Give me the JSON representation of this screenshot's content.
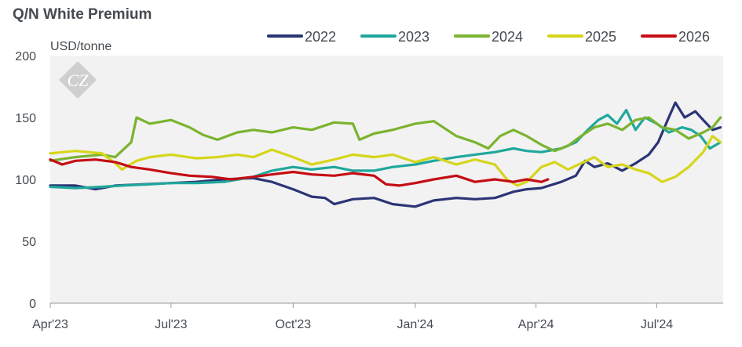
{
  "chart_data": {
    "type": "line",
    "title": "Q/N White Premium",
    "ylabel": "USD/tonne",
    "ylim": [
      0,
      200
    ],
    "yticks": [
      "0",
      "50",
      "100",
      "150",
      "200"
    ],
    "xlim": [
      "2023-04-01",
      "2024-08-20"
    ],
    "xticks": [
      {
        "label": "Apr'23",
        "date": "2023-04-01"
      },
      {
        "label": "Jul'23",
        "date": "2023-07-01"
      },
      {
        "label": "Oct'23",
        "date": "2023-10-01"
      },
      {
        "label": "Jan'24",
        "date": "2024-01-01"
      },
      {
        "label": "Apr'24",
        "date": "2024-04-01"
      },
      {
        "label": "Jul'24",
        "date": "2024-07-01"
      }
    ],
    "grid": false,
    "legend_position": "top",
    "background": "#f2f2f2",
    "watermark": "CZ",
    "series": [
      {
        "name": "2022",
        "color": "#2b3575",
        "points": [
          [
            "2023-04-01",
            95
          ],
          [
            "2023-04-20",
            95
          ],
          [
            "2023-05-05",
            92
          ],
          [
            "2023-05-20",
            95
          ],
          [
            "2023-06-10",
            96
          ],
          [
            "2023-07-01",
            97
          ],
          [
            "2023-07-20",
            98
          ],
          [
            "2023-08-10",
            100
          ],
          [
            "2023-09-01",
            101
          ],
          [
            "2023-09-15",
            98
          ],
          [
            "2023-10-01",
            92
          ],
          [
            "2023-10-15",
            86
          ],
          [
            "2023-10-25",
            85
          ],
          [
            "2023-11-01",
            80
          ],
          [
            "2023-11-15",
            84
          ],
          [
            "2023-12-01",
            85
          ],
          [
            "2023-12-15",
            80
          ],
          [
            "2024-01-01",
            78
          ],
          [
            "2024-01-15",
            83
          ],
          [
            "2024-02-01",
            85
          ],
          [
            "2024-02-15",
            84
          ],
          [
            "2024-03-01",
            85
          ],
          [
            "2024-03-15",
            90
          ],
          [
            "2024-03-25",
            92
          ],
          [
            "2024-04-05",
            93
          ],
          [
            "2024-04-20",
            98
          ],
          [
            "2024-05-01",
            103
          ],
          [
            "2024-05-08",
            115
          ],
          [
            "2024-05-15",
            110
          ],
          [
            "2024-05-25",
            113
          ],
          [
            "2024-06-05",
            107
          ],
          [
            "2024-06-15",
            113
          ],
          [
            "2024-06-25",
            120
          ],
          [
            "2024-07-02",
            130
          ],
          [
            "2024-07-10",
            150
          ],
          [
            "2024-07-15",
            162
          ],
          [
            "2024-07-22",
            150
          ],
          [
            "2024-07-30",
            155
          ],
          [
            "2024-08-05",
            148
          ],
          [
            "2024-08-12",
            140
          ],
          [
            "2024-08-18",
            142
          ]
        ]
      },
      {
        "name": "2023",
        "color": "#1fa79c",
        "points": [
          [
            "2023-04-01",
            94
          ],
          [
            "2023-04-20",
            93
          ],
          [
            "2023-05-10",
            94
          ],
          [
            "2023-05-25",
            95
          ],
          [
            "2023-06-15",
            96
          ],
          [
            "2023-07-01",
            97
          ],
          [
            "2023-07-20",
            97
          ],
          [
            "2023-08-10",
            98
          ],
          [
            "2023-09-01",
            102
          ],
          [
            "2023-09-15",
            107
          ],
          [
            "2023-10-01",
            110
          ],
          [
            "2023-10-15",
            108
          ],
          [
            "2023-11-01",
            110
          ],
          [
            "2023-11-15",
            107
          ],
          [
            "2023-12-01",
            107
          ],
          [
            "2023-12-15",
            110
          ],
          [
            "2024-01-01",
            112
          ],
          [
            "2024-01-15",
            115
          ],
          [
            "2024-02-01",
            118
          ],
          [
            "2024-02-15",
            120
          ],
          [
            "2024-03-01",
            122
          ],
          [
            "2024-03-15",
            125
          ],
          [
            "2024-03-25",
            123
          ],
          [
            "2024-04-05",
            122
          ],
          [
            "2024-04-20",
            125
          ],
          [
            "2024-05-01",
            130
          ],
          [
            "2024-05-10",
            140
          ],
          [
            "2024-05-18",
            148
          ],
          [
            "2024-05-25",
            152
          ],
          [
            "2024-06-01",
            145
          ],
          [
            "2024-06-08",
            156
          ],
          [
            "2024-06-15",
            140
          ],
          [
            "2024-06-22",
            150
          ],
          [
            "2024-07-01",
            145
          ],
          [
            "2024-07-10",
            138
          ],
          [
            "2024-07-20",
            142
          ],
          [
            "2024-07-27",
            140
          ],
          [
            "2024-08-03",
            135
          ],
          [
            "2024-08-10",
            125
          ],
          [
            "2024-08-18",
            130
          ]
        ]
      },
      {
        "name": "2024",
        "color": "#7bb32e",
        "points": [
          [
            "2023-04-01",
            115
          ],
          [
            "2023-04-20",
            118
          ],
          [
            "2023-05-10",
            120
          ],
          [
            "2023-05-20",
            118
          ],
          [
            "2023-06-01",
            130
          ],
          [
            "2023-06-05",
            150
          ],
          [
            "2023-06-15",
            145
          ],
          [
            "2023-07-01",
            148
          ],
          [
            "2023-07-15",
            142
          ],
          [
            "2023-07-25",
            136
          ],
          [
            "2023-08-05",
            132
          ],
          [
            "2023-08-20",
            138
          ],
          [
            "2023-09-01",
            140
          ],
          [
            "2023-09-15",
            138
          ],
          [
            "2023-10-01",
            142
          ],
          [
            "2023-10-15",
            140
          ],
          [
            "2023-11-01",
            146
          ],
          [
            "2023-11-15",
            145
          ],
          [
            "2023-11-20",
            132
          ],
          [
            "2023-12-01",
            137
          ],
          [
            "2023-12-15",
            140
          ],
          [
            "2024-01-01",
            145
          ],
          [
            "2024-01-15",
            147
          ],
          [
            "2024-02-01",
            135
          ],
          [
            "2024-02-15",
            130
          ],
          [
            "2024-02-25",
            125
          ],
          [
            "2024-03-05",
            135
          ],
          [
            "2024-03-15",
            140
          ],
          [
            "2024-03-25",
            135
          ],
          [
            "2024-04-05",
            128
          ],
          [
            "2024-04-15",
            123
          ],
          [
            "2024-04-25",
            127
          ],
          [
            "2024-05-05",
            135
          ],
          [
            "2024-05-15",
            142
          ],
          [
            "2024-05-25",
            145
          ],
          [
            "2024-06-05",
            140
          ],
          [
            "2024-06-15",
            148
          ],
          [
            "2024-06-25",
            150
          ],
          [
            "2024-07-05",
            142
          ],
          [
            "2024-07-15",
            140
          ],
          [
            "2024-07-25",
            133
          ],
          [
            "2024-08-05",
            138
          ],
          [
            "2024-08-12",
            142
          ],
          [
            "2024-08-18",
            150
          ]
        ]
      },
      {
        "name": "2025",
        "color": "#d6d51a",
        "points": [
          [
            "2023-04-01",
            121
          ],
          [
            "2023-04-20",
            123
          ],
          [
            "2023-05-10",
            121
          ],
          [
            "2023-05-20",
            113
          ],
          [
            "2023-05-25",
            108
          ],
          [
            "2023-06-05",
            115
          ],
          [
            "2023-06-15",
            118
          ],
          [
            "2023-07-01",
            120
          ],
          [
            "2023-07-20",
            117
          ],
          [
            "2023-08-05",
            118
          ],
          [
            "2023-08-20",
            120
          ],
          [
            "2023-09-01",
            118
          ],
          [
            "2023-09-15",
            124
          ],
          [
            "2023-10-01",
            118
          ],
          [
            "2023-10-15",
            112
          ],
          [
            "2023-11-01",
            116
          ],
          [
            "2023-11-15",
            120
          ],
          [
            "2023-12-01",
            118
          ],
          [
            "2023-12-15",
            120
          ],
          [
            "2024-01-01",
            114
          ],
          [
            "2024-01-15",
            118
          ],
          [
            "2024-02-01",
            112
          ],
          [
            "2024-02-15",
            116
          ],
          [
            "2024-03-01",
            112
          ],
          [
            "2024-03-10",
            100
          ],
          [
            "2024-03-18",
            95
          ],
          [
            "2024-03-25",
            98
          ],
          [
            "2024-04-05",
            110
          ],
          [
            "2024-04-15",
            114
          ],
          [
            "2024-04-25",
            108
          ],
          [
            "2024-05-05",
            113
          ],
          [
            "2024-05-15",
            118
          ],
          [
            "2024-05-25",
            110
          ],
          [
            "2024-06-05",
            112
          ],
          [
            "2024-06-15",
            108
          ],
          [
            "2024-06-25",
            105
          ],
          [
            "2024-07-05",
            98
          ],
          [
            "2024-07-15",
            102
          ],
          [
            "2024-07-25",
            110
          ],
          [
            "2024-08-05",
            122
          ],
          [
            "2024-08-12",
            135
          ],
          [
            "2024-08-18",
            130
          ]
        ]
      },
      {
        "name": "2026",
        "color": "#c40d14",
        "points": [
          [
            "2023-04-01",
            116
          ],
          [
            "2023-04-10",
            112
          ],
          [
            "2023-04-20",
            115
          ],
          [
            "2023-05-05",
            116
          ],
          [
            "2023-05-20",
            114
          ],
          [
            "2023-06-01",
            110
          ],
          [
            "2023-06-15",
            108
          ],
          [
            "2023-07-01",
            105
          ],
          [
            "2023-07-15",
            103
          ],
          [
            "2023-08-01",
            102
          ],
          [
            "2023-08-15",
            100
          ],
          [
            "2023-09-01",
            102
          ],
          [
            "2023-09-15",
            104
          ],
          [
            "2023-10-01",
            106
          ],
          [
            "2023-10-15",
            104
          ],
          [
            "2023-11-01",
            103
          ],
          [
            "2023-11-15",
            105
          ],
          [
            "2023-12-01",
            103
          ],
          [
            "2023-12-10",
            96
          ],
          [
            "2023-12-20",
            95
          ],
          [
            "2024-01-01",
            97
          ],
          [
            "2024-01-15",
            100
          ],
          [
            "2024-02-01",
            103
          ],
          [
            "2024-02-15",
            98
          ],
          [
            "2024-03-01",
            100
          ],
          [
            "2024-03-15",
            98
          ],
          [
            "2024-03-25",
            100
          ],
          [
            "2024-04-05",
            98
          ],
          [
            "2024-04-10",
            100
          ]
        ]
      }
    ]
  }
}
